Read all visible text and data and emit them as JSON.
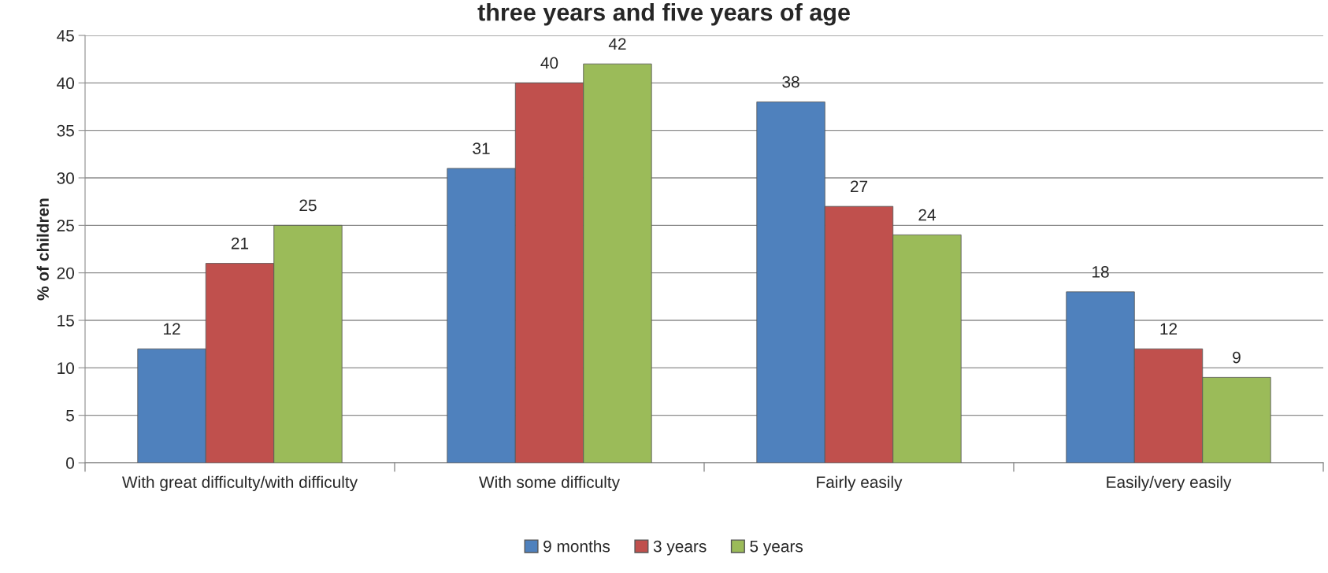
{
  "chart_data": {
    "type": "bar",
    "title": "three years and five years of age",
    "ylabel": "% of children",
    "categories": [
      "With great difficulty/with difficulty",
      "With some difficulty",
      "Fairly easily",
      "Easily/very easily"
    ],
    "series": [
      {
        "name": "9 months",
        "color": "#4f81bd",
        "values": [
          12,
          31,
          38,
          18
        ]
      },
      {
        "name": "3 years",
        "color": "#c0504d",
        "values": [
          21,
          40,
          27,
          12
        ]
      },
      {
        "name": "5 years",
        "color": "#9bbb59",
        "values": [
          25,
          42,
          24,
          9
        ]
      }
    ],
    "ylim": [
      0,
      45
    ],
    "yticks": [
      0,
      5,
      10,
      15,
      20,
      25,
      30,
      35,
      40,
      45
    ],
    "grid": "y",
    "legend": "bottom",
    "data_labels": true
  }
}
